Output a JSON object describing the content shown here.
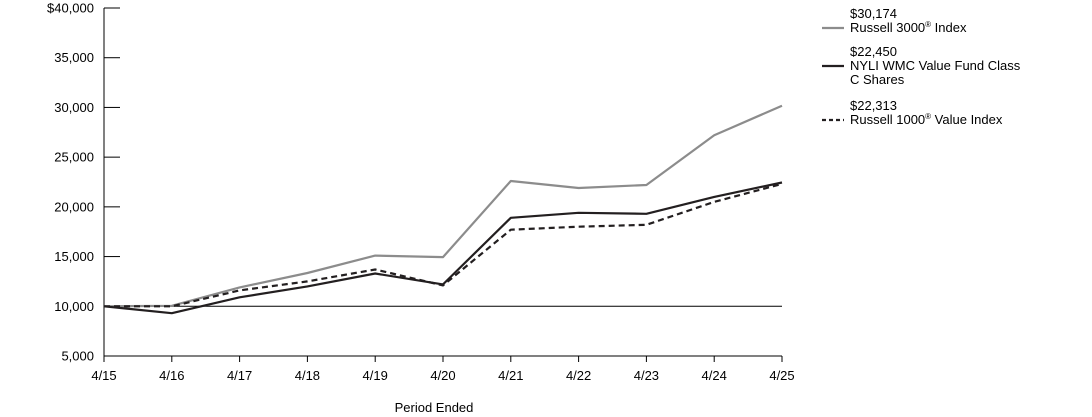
{
  "chart_data": {
    "type": "line",
    "xlabel": "Period Ended",
    "ylabel": "",
    "categories": [
      "4/15",
      "4/16",
      "4/17",
      "4/18",
      "4/19",
      "4/20",
      "4/21",
      "4/22",
      "4/23",
      "4/24",
      "4/25"
    ],
    "ylim": [
      5000,
      40000
    ],
    "yticks": [
      5000,
      10000,
      15000,
      20000,
      25000,
      30000,
      35000,
      40000
    ],
    "ytick_labels": [
      "5,000",
      "10,000",
      "15,000",
      "20,000",
      "25,000",
      "30,000",
      "35,000",
      "$40,000"
    ],
    "reference_line": 10000,
    "legend_position": "right",
    "series": [
      {
        "name": "Russell 3000® Index",
        "label_prefix": "Russell 3000",
        "label_sup": "®",
        "label_suffix": " Index",
        "end_value_label": "$30,174",
        "color": "#8c8c8c",
        "dash": "solid",
        "values": [
          10000,
          10050,
          11900,
          13350,
          15100,
          14950,
          22600,
          21900,
          22200,
          27200,
          30174
        ]
      },
      {
        "name": "NYLI WMC Value Fund Class C Shares",
        "label_lines": [
          "NYLI WMC Value Fund Class",
          "C Shares"
        ],
        "end_value_label": "$22,450",
        "color": "#231f20",
        "dash": "solid",
        "values": [
          10000,
          9300,
          10900,
          12000,
          13300,
          12200,
          18900,
          19400,
          19300,
          21000,
          22450
        ]
      },
      {
        "name": "Russell 1000® Value Index",
        "label_prefix": "Russell 1000",
        "label_sup": "®",
        "label_suffix": " Value Index",
        "end_value_label": "$22,313",
        "color": "#231f20",
        "dash": "dashed",
        "values": [
          10000,
          10000,
          11600,
          12500,
          13700,
          12100,
          17700,
          18000,
          18200,
          20500,
          22313
        ]
      }
    ]
  }
}
